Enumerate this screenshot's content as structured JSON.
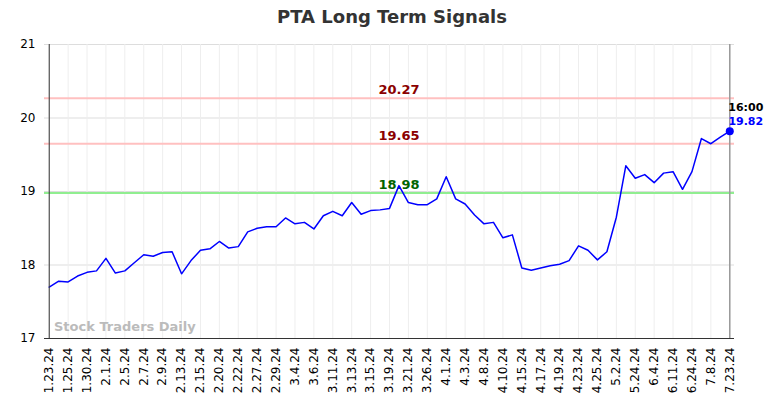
{
  "chart_data": {
    "type": "line",
    "title": "PTA Long Term Signals",
    "categories": [
      "1.23.24",
      null,
      "1.25.24",
      null,
      "1.30.24",
      null,
      "2.1.24",
      null,
      "2.5.24",
      null,
      "2.7.24",
      null,
      "2.9.24",
      null,
      "2.13.24",
      null,
      "2.15.24",
      null,
      "2.20.24",
      null,
      "2.22.24",
      null,
      "2.27.24",
      null,
      "2.29.24",
      null,
      "3.4.24",
      null,
      "3.6.24",
      null,
      "3.11.24",
      null,
      "3.13.24",
      null,
      "3.15.24",
      null,
      "3.19.24",
      null,
      "3.21.24",
      null,
      "3.26.24",
      null,
      "4.1.24",
      null,
      "4.3.24",
      null,
      "4.8.24",
      null,
      "4.10.24",
      null,
      "4.15.24",
      null,
      "4.17.24",
      null,
      "4.19.24",
      null,
      "4.23.24",
      null,
      "4.25.24",
      null,
      "5.2.24",
      null,
      "5.24.24",
      null,
      "6.4.24",
      null,
      "6.11.24",
      null,
      "6.24.24",
      null,
      "7.8.24",
      null,
      "7.23.24"
    ],
    "values": [
      17.7,
      17.78,
      17.77,
      17.85,
      17.9,
      17.92,
      18.09,
      17.89,
      17.92,
      18.03,
      18.14,
      18.12,
      18.17,
      18.18,
      17.88,
      18.06,
      18.2,
      18.22,
      18.32,
      18.23,
      18.25,
      18.45,
      18.5,
      18.52,
      18.52,
      18.64,
      18.56,
      18.58,
      18.49,
      18.67,
      18.73,
      18.67,
      18.85,
      18.69,
      18.74,
      18.75,
      18.77,
      19.08,
      18.85,
      18.82,
      18.82,
      18.9,
      19.2,
      18.9,
      18.83,
      18.68,
      18.56,
      18.58,
      18.37,
      18.41,
      17.96,
      17.93,
      17.96,
      17.99,
      18.01,
      18.06,
      18.26,
      18.2,
      18.07,
      18.18,
      18.65,
      19.35,
      19.18,
      19.23,
      19.12,
      19.25,
      19.27,
      19.03,
      19.27,
      19.72,
      19.65,
      19.74,
      19.82
    ],
    "color": "#0000ff",
    "ylim": [
      17,
      21
    ],
    "yticks": [
      17,
      18,
      19,
      20,
      21
    ],
    "grid": true,
    "levels": [
      {
        "value": 20.27,
        "color": "#ffc0c0",
        "label_color": "#8b0000"
      },
      {
        "value": 19.65,
        "color": "#ffc0c0",
        "label_color": "#8b0000"
      },
      {
        "value": 18.98,
        "color": "#90ee90",
        "label_color": "#006400"
      }
    ],
    "last_time": "16:00",
    "watermark": "Stock Traders Daily"
  }
}
